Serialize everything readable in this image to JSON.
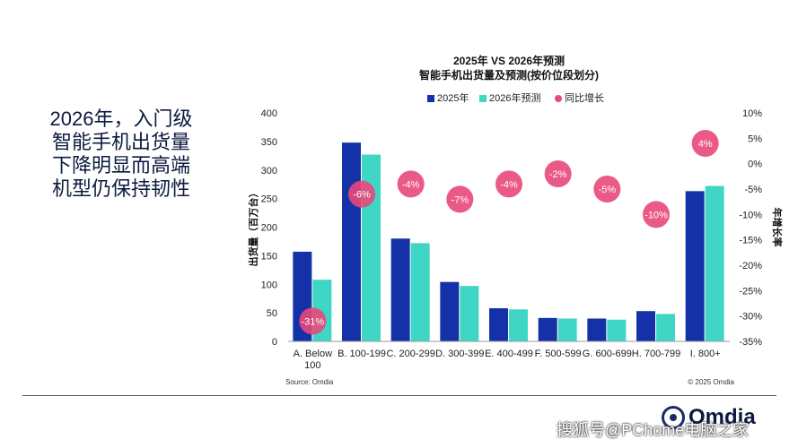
{
  "headline": [
    "2026年，入门级",
    "智能手机出货量",
    "下降明显而高端",
    "机型仍保持韧性"
  ],
  "chart_data": {
    "type": "bar",
    "title": "2025年 VS 2026年预测",
    "subtitle": "智能手机出货量及预测(按价位段划分)",
    "ylabel": "出货量（百万台）",
    "y2label": "年增长率",
    "ylim": [
      0,
      400
    ],
    "yticks": [
      0,
      50,
      100,
      150,
      200,
      250,
      300,
      350,
      400
    ],
    "y2lim": [
      -35,
      10
    ],
    "y2ticks": [
      "10%",
      "5%",
      "0%",
      "-5%",
      "-10%",
      "-15%",
      "-20%",
      "-25%",
      "-30%",
      "-35%"
    ],
    "categories": [
      "A. Below 100",
      "B. 100-199",
      "C. 200-299",
      "D. 300-399",
      "E. 400-499",
      "F. 500-599",
      "G. 600-699",
      "H. 700-799",
      "I. 800+"
    ],
    "series": [
      {
        "name": "2025年",
        "color": "#1531a8",
        "values": [
          157,
          348,
          180,
          104,
          58,
          41,
          40,
          53,
          263
        ]
      },
      {
        "name": "2026年预测",
        "color": "#3fd6c6",
        "values": [
          108,
          327,
          172,
          97,
          56,
          40,
          38,
          48,
          272
        ]
      }
    ],
    "growth": {
      "name": "同比增长",
      "color": "#e8487a",
      "values": [
        -31,
        -6,
        -4,
        -7,
        -4,
        -2,
        -5,
        -10,
        4
      ],
      "labels": [
        "-31%",
        "-6%",
        "-4%",
        "-7%",
        "-4%",
        "-2%",
        "-5%",
        "-10%",
        "4%"
      ]
    },
    "source": "Source: Omdia",
    "copyright": "© 2025 Omdia"
  },
  "watermark": "搜狐号@PChome电脑之家",
  "logo": "Omdia"
}
